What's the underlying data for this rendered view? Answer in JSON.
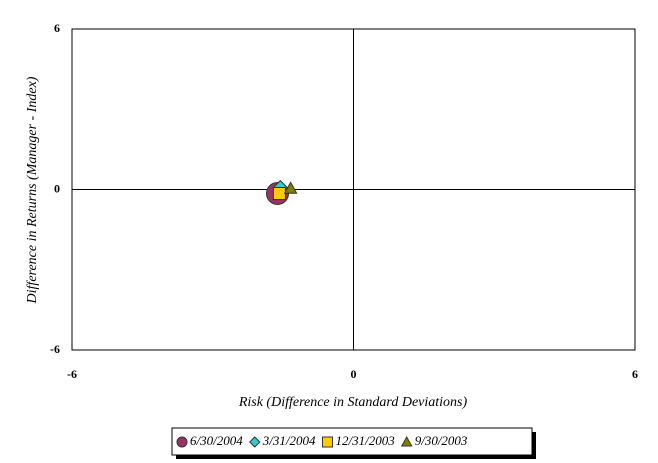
{
  "chart_data": {
    "type": "scatter",
    "x_label": "Risk (Difference in Standard Deviations)",
    "y_label": "Difference in Returns (Manager - Index)",
    "xlim": [
      -6,
      6
    ],
    "ylim": [
      -6,
      6
    ],
    "xticks": [
      -6,
      0,
      6
    ],
    "yticks": [
      -6,
      0,
      6
    ],
    "legend": "bottom",
    "series": [
      {
        "name": "6/30/2004",
        "color": "#993366",
        "marker": "circle",
        "x": [
          -1.62
        ],
        "values": [
          -0.15
        ]
      },
      {
        "name": "3/31/2004",
        "color": "#33cccc",
        "marker": "diamond",
        "x": [
          -1.56
        ],
        "values": [
          0.07
        ]
      },
      {
        "name": "12/31/2003",
        "color": "#ffcc00",
        "marker": "square",
        "x": [
          -1.58
        ],
        "values": [
          -0.15
        ]
      },
      {
        "name": "9/30/2003",
        "color": "#808000",
        "marker": "triangle",
        "x": [
          -1.34
        ],
        "values": [
          0.04
        ]
      }
    ]
  }
}
